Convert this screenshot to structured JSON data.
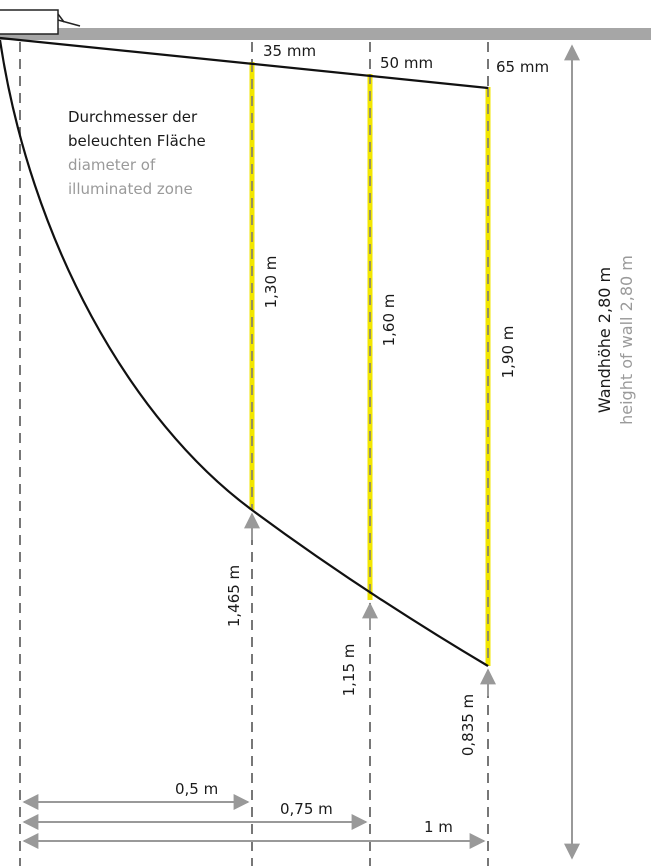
{
  "description_de": [
    "Durchmesser der",
    "beleuchten Fläche"
  ],
  "description_en": [
    "diameter of",
    "illuminated zone"
  ],
  "profile_widths": [
    "35 mm",
    "50 mm",
    "65 mm"
  ],
  "illuminated_lengths": [
    "1,30 m",
    "1,60 m",
    "1,90 m"
  ],
  "start_heights": [
    "1,465 m",
    "1,15 m",
    "0,835 m"
  ],
  "distances": [
    "0,5 m",
    "0,75 m",
    "1 m"
  ],
  "wall_height_de": "Wandhöhe 2,80 m",
  "wall_height_en": "height of wall 2,80 m",
  "colors": {
    "illuminated": "#f2e600",
    "dashed": "#777777",
    "arrow": "#999999",
    "ceiling": "#a6a6a6",
    "curve": "#111111"
  }
}
